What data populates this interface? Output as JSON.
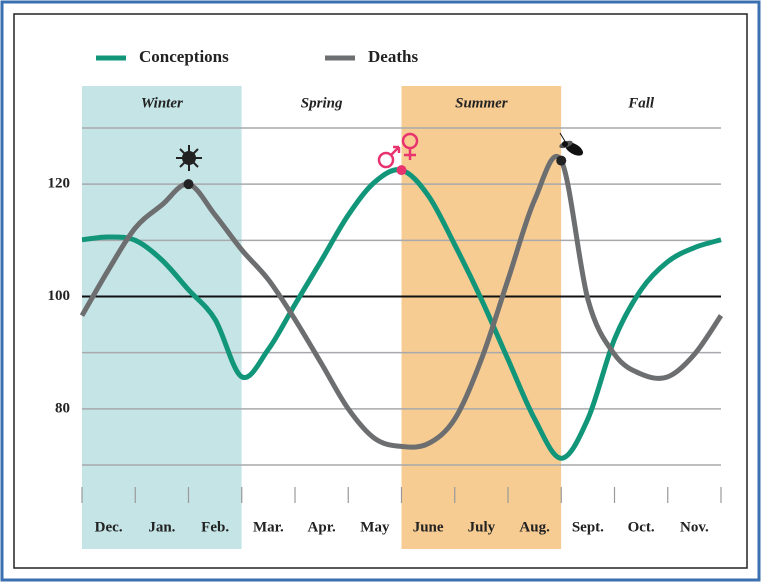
{
  "chart_data": {
    "type": "line",
    "series": [
      {
        "name": "Conceptions",
        "color": "#12967a",
        "values": [
          110.1,
          110.6,
          110,
          106.5,
          101.2,
          95.9,
          85.7,
          90.6,
          98.6,
          106.5,
          114.5,
          120.4,
          122.5,
          118,
          109.2,
          99.5,
          88.8,
          78.2,
          71.2,
          78.2,
          92.4,
          101.2,
          106.2,
          108.7,
          110.1
        ]
      },
      {
        "name": "Deaths",
        "color": "#6d6e70",
        "values": [
          96.6,
          104.8,
          112.2,
          116.3,
          120,
          114.5,
          108.3,
          103,
          95.9,
          88,
          80,
          74.7,
          73.3,
          73.8,
          78.2,
          88.8,
          103,
          117.2,
          124.2,
          99.5,
          89.7,
          86.2,
          85.7,
          89.7,
          96.6
        ]
      }
    ],
    "x": [
      0,
      0.5,
      1,
      1.5,
      2,
      2.5,
      3,
      3.5,
      4,
      4.5,
      5,
      5.5,
      6,
      6.5,
      7,
      7.5,
      8,
      8.5,
      9,
      9.5,
      10,
      10.5,
      11,
      11.5,
      12
    ],
    "xlim": [
      0,
      12
    ],
    "categories": [
      "Dec.",
      "Jan.",
      "Feb.",
      "Mar.",
      "Apr.",
      "May",
      "June",
      "July",
      "Aug.",
      "Sept.",
      "Oct.",
      "Nov."
    ],
    "seasons": [
      {
        "name": "Winter",
        "color": "#c5e4e6"
      },
      {
        "name": "Spring",
        "color": "#ffffff"
      },
      {
        "name": "Summer",
        "color": "#f7cc93"
      },
      {
        "name": "Fall",
        "color": "#ffffff"
      }
    ],
    "ylim": [
      70,
      130
    ],
    "yticks": [
      80,
      100,
      120
    ],
    "minor_yticks": [
      70,
      90,
      110,
      130
    ],
    "reference_line": 100,
    "highlights": [
      {
        "series": 1,
        "index": 4
      },
      {
        "series": 0,
        "index": 12
      },
      {
        "series": 1,
        "index": 18
      }
    ]
  }
}
